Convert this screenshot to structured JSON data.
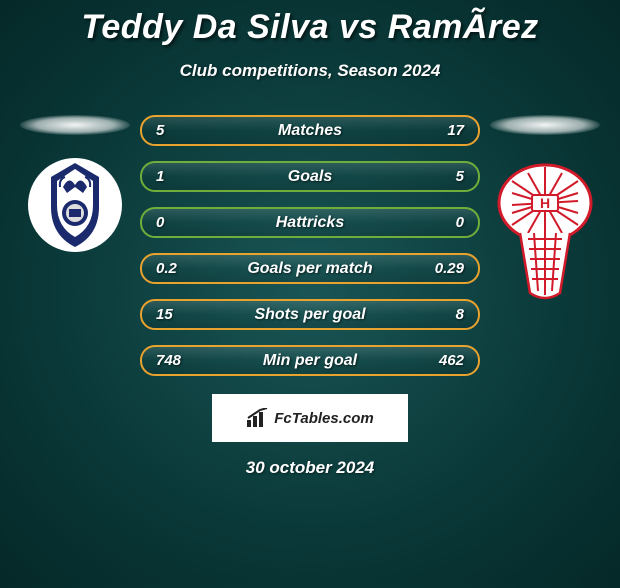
{
  "title": "Teddy Da Silva vs RamÃ­rez",
  "subtitle": "Club competitions, Season 2024",
  "date": "30 october 2024",
  "footer_brand": "FcTables.com",
  "colors": {
    "title": "#ffffff",
    "text": "#ffffff",
    "bg_inner": "#1a5555",
    "bg_outer": "#052828"
  },
  "bars": [
    {
      "label": "Matches",
      "left": "5",
      "right": "17",
      "border": "#e8a22e"
    },
    {
      "label": "Goals",
      "left": "1",
      "right": "5",
      "border": "#6fae3a"
    },
    {
      "label": "Hattricks",
      "left": "0",
      "right": "0",
      "border": "#6fae3a"
    },
    {
      "label": "Goals per match",
      "left": "0.2",
      "right": "0.29",
      "border": "#e8a22e"
    },
    {
      "label": "Shots per goal",
      "left": "15",
      "right": "8",
      "border": "#e8a22e"
    },
    {
      "label": "Min per goal",
      "left": "748",
      "right": "462",
      "border": "#e8a22e"
    }
  ],
  "left_team": {
    "name": "gimnasia-la-plata",
    "logo_bg": "#ffffff",
    "logo_accent": "#1a2a6c",
    "logo_radius": 48
  },
  "right_team": {
    "name": "huracan",
    "logo_bg": "#ffffff",
    "logo_accent": "#d11a2a",
    "logo_radius": 64
  }
}
